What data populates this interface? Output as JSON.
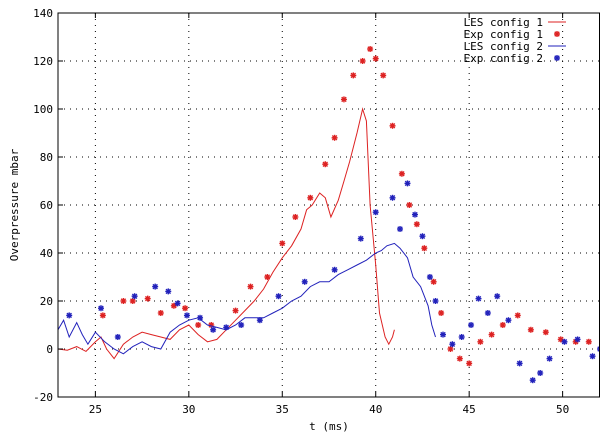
{
  "chart_data": {
    "type": "line",
    "xlabel": "t (ms)",
    "ylabel": "Overpressure mbar",
    "xlim": [
      23,
      52
    ],
    "ylim": [
      -20,
      140
    ],
    "xticks": [
      25,
      30,
      35,
      40,
      45,
      50
    ],
    "yticks": [
      -20,
      0,
      20,
      40,
      60,
      80,
      100,
      120,
      140
    ],
    "grid": true,
    "legend_position": "top-right",
    "series": [
      {
        "name": "LES config 1",
        "kind": "line",
        "color": "#dd2222",
        "x": [
          23.0,
          23.5,
          24.0,
          24.5,
          25.0,
          25.3,
          25.6,
          26.0,
          26.5,
          27.0,
          27.5,
          28.0,
          28.5,
          29.0,
          29.5,
          30.0,
          30.5,
          31.0,
          31.5,
          32.0,
          32.5,
          33.0,
          33.5,
          34.0,
          34.5,
          35.0,
          35.5,
          36.0,
          36.3,
          36.6,
          37.0,
          37.3,
          37.6,
          38.0,
          38.3,
          38.6,
          39.0,
          39.3,
          39.5,
          39.7,
          40.0,
          40.2,
          40.5,
          40.7,
          40.9,
          41.0
        ],
        "y": [
          0,
          -0.5,
          1,
          -1,
          3,
          5,
          0,
          -4,
          2,
          5,
          7,
          6,
          5,
          4,
          8,
          10,
          6,
          3,
          4,
          8,
          12,
          16,
          20,
          25,
          32,
          38,
          43,
          50,
          58,
          60,
          65,
          63,
          55,
          62,
          70,
          78,
          90,
          100,
          95,
          60,
          35,
          15,
          5,
          2,
          5,
          8
        ]
      },
      {
        "name": "Exp config 1",
        "kind": "points",
        "color": "#dd2222",
        "x": [
          25.4,
          26.5,
          27.0,
          27.8,
          28.5,
          29.2,
          29.8,
          30.5,
          31.2,
          32.5,
          33.3,
          34.2,
          35.0,
          35.7,
          36.5,
          37.3,
          37.8,
          38.3,
          38.8,
          39.3,
          39.7,
          40.0,
          40.4,
          40.9,
          41.4,
          41.8,
          42.2,
          42.6,
          43.1,
          43.5,
          44.0,
          44.5,
          45.0,
          45.6,
          46.2,
          46.8,
          47.6,
          48.3,
          49.1,
          49.9,
          50.7,
          51.4
        ],
        "y": [
          14,
          20,
          20,
          21,
          15,
          18,
          17,
          10,
          10,
          16,
          26,
          30,
          44,
          55,
          63,
          77,
          88,
          104,
          114,
          120,
          125,
          121,
          114,
          93,
          73,
          60,
          52,
          42,
          28,
          15,
          0,
          -4,
          -6,
          3,
          6,
          10,
          14,
          8,
          7,
          4,
          3,
          3
        ]
      },
      {
        "name": "LES config 2",
        "kind": "line",
        "color": "#2222bb",
        "x": [
          23.0,
          23.3,
          23.6,
          24.0,
          24.3,
          24.6,
          25.0,
          25.5,
          26.0,
          26.5,
          27.0,
          27.5,
          28.0,
          28.5,
          29.0,
          29.5,
          30.0,
          30.5,
          31.0,
          31.5,
          32.0,
          32.5,
          33.0,
          33.5,
          34.0,
          34.5,
          35.0,
          35.5,
          36.0,
          36.5,
          37.0,
          37.5,
          38.0,
          38.5,
          39.0,
          39.5,
          40.0,
          40.3,
          40.6,
          41.0,
          41.3,
          41.7,
          42.0,
          42.4,
          42.8,
          43.0,
          43.2
        ],
        "y": [
          8,
          12,
          5,
          11,
          6,
          2,
          7,
          3,
          0,
          -2,
          1,
          3,
          1,
          0,
          7,
          10,
          12,
          13,
          10,
          9,
          8,
          10,
          13,
          13,
          13,
          15,
          17,
          20,
          22,
          26,
          28,
          28,
          31,
          33,
          35,
          37,
          40,
          41,
          43,
          44,
          42,
          38,
          30,
          26,
          18,
          10,
          5
        ]
      },
      {
        "name": "Exp config 2",
        "kind": "points",
        "color": "#2222bb",
        "x": [
          23.6,
          25.3,
          26.2,
          27.1,
          28.2,
          28.9,
          29.4,
          29.9,
          30.6,
          31.3,
          32.0,
          32.8,
          33.8,
          34.8,
          36.2,
          37.8,
          39.2,
          40.0,
          40.9,
          41.3,
          41.7,
          42.1,
          42.5,
          42.9,
          43.2,
          43.6,
          44.1,
          44.6,
          45.1,
          45.5,
          46.0,
          46.5,
          47.1,
          47.7,
          48.4,
          48.8,
          49.3,
          50.1,
          50.8,
          51.6,
          52.0
        ],
        "y": [
          14,
          17,
          5,
          22,
          26,
          24,
          19,
          14,
          13,
          8,
          9,
          10,
          12,
          22,
          28,
          33,
          46,
          57,
          63,
          50,
          69,
          56,
          47,
          30,
          20,
          6,
          2,
          5,
          10,
          21,
          15,
          22,
          12,
          -6,
          -13,
          -10,
          -4,
          3,
          4,
          -3,
          0
        ]
      }
    ]
  }
}
